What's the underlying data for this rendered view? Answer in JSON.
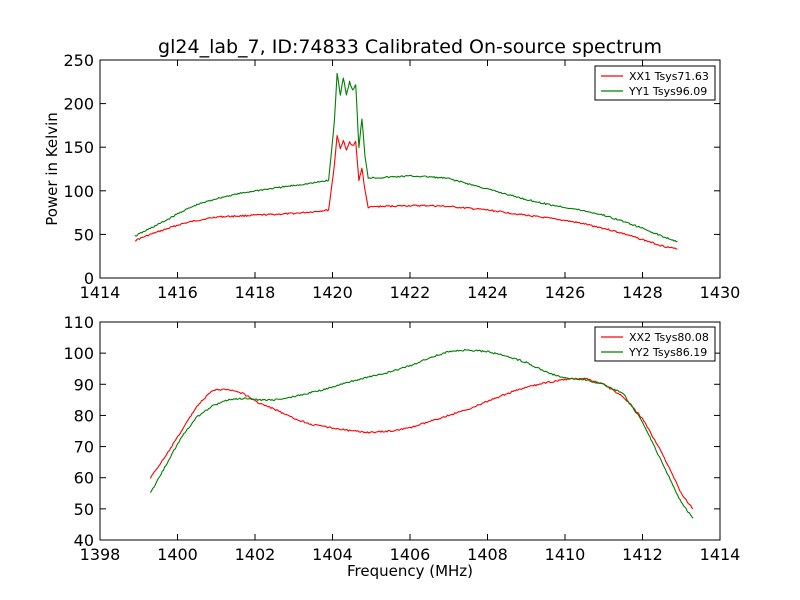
{
  "figure": {
    "title": "gl24_lab_7, ID:74833 Calibrated On-source spectrum"
  },
  "chart_data": [
    {
      "type": "line",
      "ylabel": "Power in Kelvin",
      "xlabel": "",
      "xlim": [
        1414,
        1430
      ],
      "ylim": [
        0,
        250
      ],
      "xticks": [
        1414,
        1416,
        1418,
        1420,
        1422,
        1424,
        1426,
        1428,
        1430
      ],
      "yticks": [
        0,
        50,
        100,
        150,
        200,
        250
      ],
      "grid": false,
      "legend_position": "top-right",
      "series": [
        {
          "name": "XX1 Tsys71.63",
          "color": "#ff0000",
          "x": [
            1414.9,
            1415.3,
            1415.7,
            1416.1,
            1416.5,
            1417.0,
            1417.5,
            1418.0,
            1418.5,
            1419.0,
            1419.5,
            1419.9,
            1420.05,
            1420.12,
            1420.2,
            1420.28,
            1420.36,
            1420.44,
            1420.52,
            1420.6,
            1420.68,
            1420.76,
            1420.84,
            1420.92,
            1421.2,
            1421.6,
            1422.0,
            1422.5,
            1423.0,
            1423.5,
            1424.0,
            1424.5,
            1425.0,
            1425.5,
            1426.0,
            1426.5,
            1427.0,
            1427.5,
            1428.0,
            1428.5,
            1428.9
          ],
          "y": [
            43,
            50,
            56,
            62,
            66,
            70,
            71,
            72,
            73,
            74,
            76,
            78,
            130,
            164,
            148,
            158,
            146,
            156,
            152,
            156,
            112,
            126,
            100,
            81,
            82,
            82.5,
            83,
            83,
            82,
            80,
            78,
            75,
            72,
            69,
            66,
            62,
            57,
            51,
            44,
            37,
            33
          ]
        },
        {
          "name": "YY1 Tsys96.09",
          "color": "#008000",
          "x": [
            1414.9,
            1415.3,
            1415.7,
            1416.1,
            1416.5,
            1417.0,
            1417.5,
            1418.0,
            1418.5,
            1419.0,
            1419.5,
            1419.9,
            1420.05,
            1420.12,
            1420.2,
            1420.28,
            1420.36,
            1420.44,
            1420.52,
            1420.6,
            1420.68,
            1420.76,
            1420.84,
            1420.92,
            1421.2,
            1421.6,
            1422.0,
            1422.5,
            1423.0,
            1423.5,
            1424.0,
            1424.5,
            1425.0,
            1425.5,
            1426.0,
            1426.5,
            1427.0,
            1427.5,
            1428.0,
            1428.5,
            1428.9
          ],
          "y": [
            48,
            57,
            66,
            76,
            84,
            91,
            96,
            100,
            103,
            106,
            109,
            112,
            180,
            235,
            210,
            230,
            210,
            225,
            215,
            222,
            150,
            182,
            140,
            115,
            115,
            116,
            117,
            116,
            114,
            108,
            102,
            96,
            90,
            85,
            81,
            77,
            72,
            65,
            57,
            48,
            42
          ]
        }
      ]
    },
    {
      "type": "line",
      "ylabel": "",
      "xlabel": "Frequency (MHz)",
      "xlim": [
        1398,
        1414
      ],
      "ylim": [
        40,
        110
      ],
      "xticks": [
        1398,
        1400,
        1402,
        1404,
        1406,
        1408,
        1410,
        1412,
        1414
      ],
      "yticks": [
        40,
        50,
        60,
        70,
        80,
        90,
        100,
        110
      ],
      "grid": false,
      "legend_position": "top-right",
      "series": [
        {
          "name": "XX2 Tsys80.08",
          "color": "#ff0000",
          "x": [
            1399.3,
            1399.7,
            1400.1,
            1400.5,
            1400.9,
            1401.3,
            1401.7,
            1402.1,
            1402.5,
            1403.0,
            1403.5,
            1404.0,
            1404.5,
            1405.0,
            1405.5,
            1406.0,
            1406.5,
            1407.0,
            1407.5,
            1408.0,
            1408.5,
            1409.0,
            1409.5,
            1410.0,
            1410.5,
            1411.0,
            1411.5,
            1412.0,
            1412.5,
            1413.0,
            1413.3
          ],
          "y": [
            60,
            67,
            75,
            83,
            88,
            88.5,
            87,
            84,
            82,
            79,
            77,
            76,
            75,
            74.5,
            75,
            76,
            78,
            80,
            82,
            84.5,
            87,
            89,
            90.5,
            91.5,
            92,
            90,
            86,
            79,
            68,
            55,
            50
          ]
        },
        {
          "name": "YY2 Tsys86.19",
          "color": "#008000",
          "x": [
            1399.3,
            1399.7,
            1400.1,
            1400.5,
            1400.9,
            1401.3,
            1401.7,
            1402.1,
            1402.5,
            1403.0,
            1403.5,
            1404.0,
            1404.5,
            1405.0,
            1405.5,
            1406.0,
            1406.5,
            1407.0,
            1407.5,
            1408.0,
            1408.5,
            1409.0,
            1409.5,
            1410.0,
            1410.5,
            1411.0,
            1411.5,
            1412.0,
            1412.5,
            1413.0,
            1413.3
          ],
          "y": [
            55,
            64,
            73,
            79.5,
            83,
            85,
            85.5,
            85,
            85,
            86,
            87.5,
            89,
            91,
            92.5,
            94,
            96,
            98.5,
            100.5,
            101,
            100.5,
            99,
            97,
            94,
            92,
            91.5,
            90,
            87,
            78,
            65,
            52,
            47
          ]
        }
      ]
    }
  ]
}
